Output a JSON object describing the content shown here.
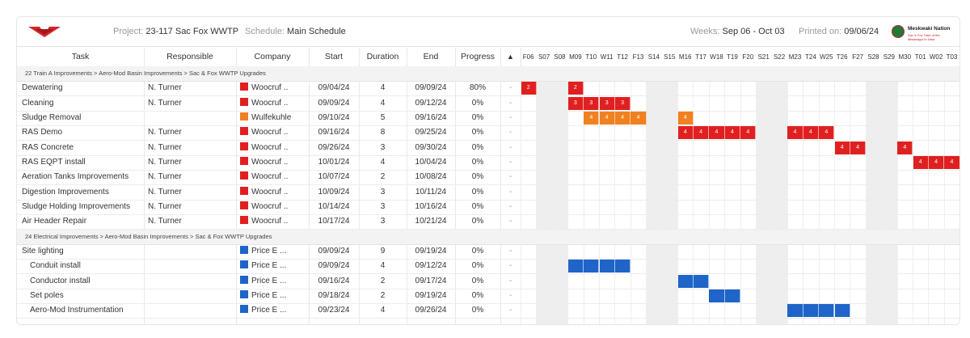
{
  "header": {
    "project_label": "Project:",
    "project_value": "23-117 Sac Fox WWTP",
    "schedule_label": "Schedule:",
    "schedule_value": "Main Schedule",
    "weeks_label": "Weeks:",
    "weeks_value": "Sep 06 - Oct 03",
    "printed_label": "Printed on:",
    "printed_value": "09/06/24",
    "partner_logo_title": "Meskwaki Nation",
    "partner_logo_subtitle": "Sac & Fox Tribe of the Mississippi in Iowa"
  },
  "columns": [
    "Task",
    "Responsible",
    "Company",
    "Start",
    "Duration",
    "End",
    "Progress",
    "▲"
  ],
  "days": [
    "F06",
    "S07",
    "S08",
    "M09",
    "T10",
    "W11",
    "T12",
    "F13",
    "S14",
    "S15",
    "M16",
    "T17",
    "W18",
    "T19",
    "F20",
    "S21",
    "S22",
    "M23",
    "T24",
    "W25",
    "T26",
    "F27",
    "S28",
    "S29",
    "M30",
    "T01",
    "W02",
    "T03"
  ],
  "weekend_indices": [
    1,
    2,
    8,
    9,
    15,
    16,
    22,
    23
  ],
  "colors": {
    "red": "#e02020",
    "orange": "#f08020",
    "blue": "#1f64c8"
  },
  "groups": [
    {
      "label": "22 Train A Improvements > Aero-Mod Basin Improvements > Sac & Fox WWTP Upgrades",
      "tasks": [
        {
          "task": "Dewatering",
          "resp": "N. Turner",
          "company": "Woocruf ..",
          "color": "red",
          "start": "09/04/24",
          "dur": "4",
          "end": "09/09/24",
          "prog": "80%",
          "flag": "-",
          "bars": [
            [
              0,
              1,
              "2"
            ],
            [
              3,
              1,
              "2"
            ]
          ]
        },
        {
          "task": "Cleaning",
          "resp": "N. Turner",
          "company": "Woocruf ..",
          "color": "red",
          "start": "09/09/24",
          "dur": "4",
          "end": "09/12/24",
          "prog": "0%",
          "flag": "-",
          "bars": [
            [
              3,
              4,
              "3"
            ]
          ]
        },
        {
          "task": "Sludge Removal",
          "resp": "",
          "company": "Wulfekuhle",
          "color": "orange",
          "start": "09/10/24",
          "dur": "5",
          "end": "09/16/24",
          "prog": "0%",
          "flag": "-",
          "bars": [
            [
              4,
              4,
              "4"
            ],
            [
              10,
              1,
              "4"
            ]
          ]
        },
        {
          "task": "RAS Demo",
          "resp": "N. Turner",
          "company": "Woocruf ..",
          "color": "red",
          "start": "09/16/24",
          "dur": "8",
          "end": "09/25/24",
          "prog": "0%",
          "flag": "-",
          "bars": [
            [
              10,
              5,
              "4"
            ],
            [
              17,
              3,
              "4"
            ]
          ]
        },
        {
          "task": "RAS Concrete",
          "resp": "N. Turner",
          "company": "Woocruf ..",
          "color": "red",
          "start": "09/26/24",
          "dur": "3",
          "end": "09/30/24",
          "prog": "0%",
          "flag": "-",
          "bars": [
            [
              20,
              2,
              "4"
            ],
            [
              24,
              1,
              "4"
            ]
          ]
        },
        {
          "task": "RAS EQPT install",
          "resp": "N. Turner",
          "company": "Woocruf ..",
          "color": "red",
          "start": "10/01/24",
          "dur": "4",
          "end": "10/04/24",
          "prog": "0%",
          "flag": "-",
          "bars": [
            [
              25,
              3,
              "4"
            ]
          ]
        },
        {
          "task": "Aeration Tanks Improvements",
          "resp": "N. Turner",
          "company": "Woocruf ..",
          "color": "red",
          "start": "10/07/24",
          "dur": "2",
          "end": "10/08/24",
          "prog": "0%",
          "flag": "-",
          "bars": []
        },
        {
          "task": "Digestion Improvements",
          "resp": "N. Turner",
          "company": "Woocruf ..",
          "color": "red",
          "start": "10/09/24",
          "dur": "3",
          "end": "10/11/24",
          "prog": "0%",
          "flag": "-",
          "bars": []
        },
        {
          "task": "Sludge Holding Improvements",
          "resp": "N. Turner",
          "company": "Woocruf ..",
          "color": "red",
          "start": "10/14/24",
          "dur": "3",
          "end": "10/16/24",
          "prog": "0%",
          "flag": "-",
          "bars": []
        },
        {
          "task": "Air Header Repair",
          "resp": "N. Turner",
          "company": "Woocruf ..",
          "color": "red",
          "start": "10/17/24",
          "dur": "3",
          "end": "10/21/24",
          "prog": "0%",
          "flag": "-",
          "bars": []
        }
      ]
    },
    {
      "label": "24 Electrical Improvements > Aero-Mod Basin Improvements > Sac & Fox WWTP Upgrades",
      "tasks": [
        {
          "task": "Site lighting",
          "resp": "",
          "company": "Price E ...",
          "color": "blue",
          "start": "09/09/24",
          "dur": "9",
          "end": "09/19/24",
          "prog": "0%",
          "flag": "-",
          "bars": []
        },
        {
          "task": "Conduit install",
          "resp": "",
          "company": "Price E ...",
          "color": "blue",
          "start": "09/09/24",
          "dur": "4",
          "end": "09/12/24",
          "prog": "0%",
          "flag": "-",
          "bars": [
            [
              3,
              4,
              ""
            ]
          ]
        },
        {
          "task": "Conductor install",
          "resp": "",
          "company": "Price E ...",
          "color": "blue",
          "start": "09/16/24",
          "dur": "2",
          "end": "09/17/24",
          "prog": "0%",
          "flag": "-",
          "bars": [
            [
              10,
              2,
              ""
            ]
          ]
        },
        {
          "task": "Set poles",
          "resp": "",
          "company": "Price E ...",
          "color": "blue",
          "start": "09/18/24",
          "dur": "2",
          "end": "09/19/24",
          "prog": "0%",
          "flag": "-",
          "bars": [
            [
              12,
              2,
              ""
            ]
          ]
        },
        {
          "task": "Aero-Mod Instrumentation",
          "resp": "",
          "company": "Price E ...",
          "color": "blue",
          "start": "09/23/24",
          "dur": "4",
          "end": "09/26/24",
          "prog": "0%",
          "flag": "-",
          "bars": [
            [
              17,
              4,
              ""
            ]
          ]
        }
      ]
    }
  ]
}
